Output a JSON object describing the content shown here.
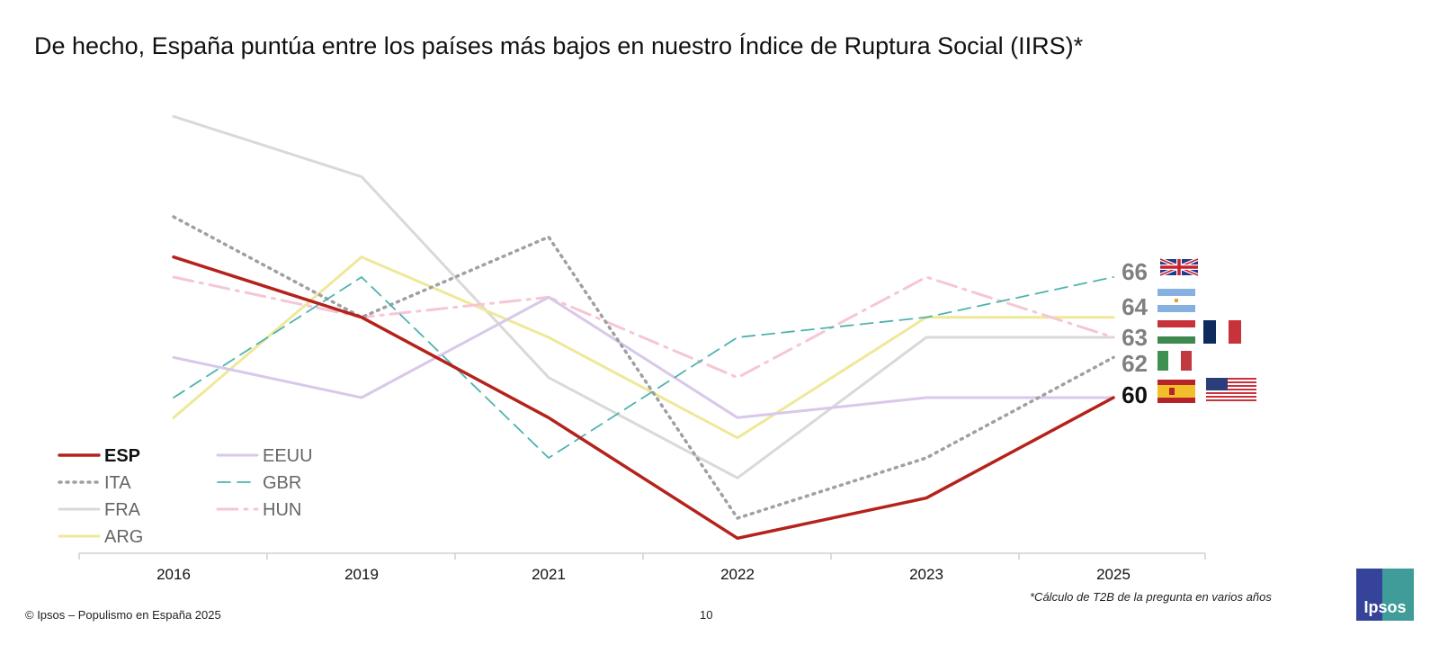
{
  "title": "De hecho, España puntúa entre los países más bajos en nuestro Índice de Ruptura Social (IIRS)*",
  "footer": {
    "source": "© Ipsos – Populismo en España 2025",
    "page": "10",
    "footnote": "*Cálculo de T2B de la pregunta en varios años",
    "logo": "Ipsos"
  },
  "chart_data": {
    "type": "line",
    "title": "De hecho, España puntúa entre los países más bajos en nuestro Índice de Ruptura Social (IIRS)*",
    "xlabel": "",
    "ylabel": "",
    "categories": [
      "2016",
      "2019",
      "2021",
      "2022",
      "2023",
      "2025"
    ],
    "ylim": [
      52,
      75
    ],
    "grid": false,
    "legend": "bottom-left",
    "series": [
      {
        "name": "ESP",
        "color": "#b5221b",
        "style": "solid",
        "bold": true,
        "values": [
          67,
          64,
          59,
          53,
          55,
          60
        ]
      },
      {
        "name": "EEUU",
        "color": "#d8c8ea",
        "style": "solid",
        "values": [
          62,
          60,
          65,
          59,
          60,
          60
        ]
      },
      {
        "name": "ITA",
        "color": "#a0a0a0",
        "style": "dotted",
        "values": [
          69,
          64,
          68,
          54,
          57,
          62
        ]
      },
      {
        "name": "GBR",
        "color": "#4fb3ad",
        "style": "dashed",
        "values": [
          60,
          66,
          57,
          63,
          64,
          66
        ]
      },
      {
        "name": "FRA",
        "color": "#d9d9d9",
        "style": "solid",
        "values": [
          74,
          71,
          61,
          56,
          63,
          63
        ]
      },
      {
        "name": "HUN",
        "color": "#f6c6d5",
        "style": "dashdot",
        "values": [
          66,
          64,
          65,
          61,
          66,
          63
        ]
      },
      {
        "name": "ARG",
        "color": "#efe89a",
        "style": "solid",
        "values": [
          59,
          67,
          63,
          58,
          64,
          64
        ]
      }
    ],
    "end_labels": [
      {
        "value": "66",
        "flags": [
          "gbr-flag"
        ],
        "color": "#808080"
      },
      {
        "value": "64",
        "flags": [
          "arg-flag"
        ],
        "color": "#808080"
      },
      {
        "value": "63",
        "flags": [
          "hun-flag",
          "fra-flag"
        ],
        "color": "#808080"
      },
      {
        "value": "62",
        "flags": [
          "ita-flag"
        ],
        "color": "#808080"
      },
      {
        "value": "60",
        "flags": [
          "esp-flag",
          "usa-flag"
        ],
        "color": "#111111"
      }
    ]
  }
}
